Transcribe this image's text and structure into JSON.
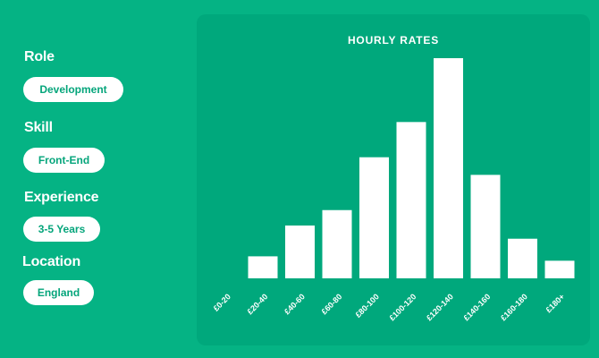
{
  "filters": [
    {
      "label": "Role",
      "value": "Development"
    },
    {
      "label": "Skill",
      "value": "Front-End"
    },
    {
      "label": "Experience",
      "value": "3-5 Years"
    },
    {
      "label": "Location",
      "value": "England"
    }
  ],
  "colors": {
    "background": "#05b384",
    "panel": "#00a87c",
    "bar": "#ffffff",
    "pill_text": "#05a57b"
  },
  "chart_data": {
    "type": "bar",
    "title": "HOURLY RATES",
    "xlabel": "",
    "ylabel": "",
    "grid": false,
    "categories": [
      "£0-20",
      "£20-40",
      "£40-60",
      "£60-80",
      "£80-100",
      "£100-120",
      "£120-140",
      "£140-160",
      "£160-180",
      "£180+"
    ],
    "values": [
      0,
      10,
      24,
      31,
      55,
      71,
      100,
      47,
      18,
      8
    ],
    "ylim": [
      0,
      100
    ]
  }
}
